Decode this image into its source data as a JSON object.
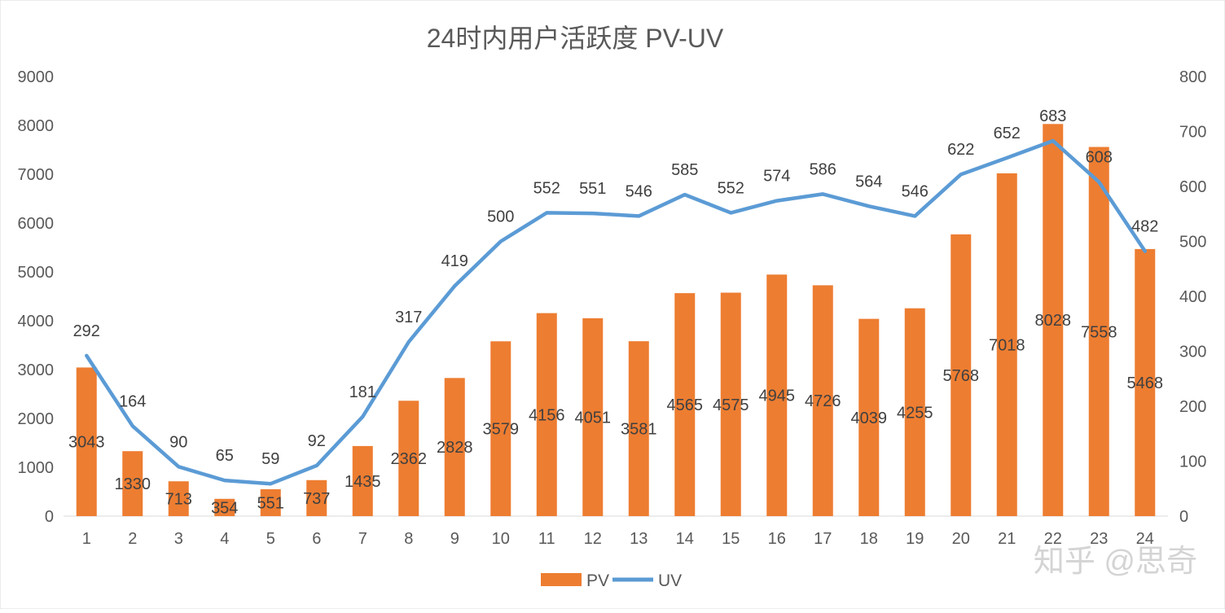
{
  "watermark": "知乎 @思奇",
  "chart_data": {
    "type": "bar",
    "title": "24时内用户活跃度 PV-UV",
    "categories": [
      "1",
      "2",
      "3",
      "4",
      "5",
      "6",
      "7",
      "8",
      "9",
      "10",
      "11",
      "12",
      "13",
      "14",
      "15",
      "16",
      "17",
      "18",
      "19",
      "20",
      "21",
      "22",
      "23",
      "24"
    ],
    "series": [
      {
        "name": "PV",
        "type": "bar",
        "axis": "left",
        "color": "#ED7D31",
        "values": [
          3043,
          1330,
          713,
          354,
          551,
          737,
          1435,
          2362,
          2828,
          3579,
          4156,
          4051,
          3581,
          4565,
          4575,
          4945,
          4726,
          4039,
          4255,
          5768,
          7018,
          8028,
          7558,
          5468
        ]
      },
      {
        "name": "UV",
        "type": "line",
        "axis": "right",
        "color": "#5B9BD5",
        "values": [
          292,
          164,
          90,
          65,
          59,
          92,
          181,
          317,
          419,
          500,
          552,
          551,
          546,
          585,
          552,
          574,
          586,
          564,
          546,
          622,
          652,
          683,
          608,
          482
        ]
      }
    ],
    "y_left": {
      "min": 0,
      "max": 9000,
      "ticks": [
        0,
        1000,
        2000,
        3000,
        4000,
        5000,
        6000,
        7000,
        8000,
        9000
      ]
    },
    "y_right": {
      "min": 0,
      "max": 800,
      "ticks": [
        0,
        100,
        200,
        300,
        400,
        500,
        600,
        700,
        800
      ]
    },
    "grid": false,
    "legend": "bottom"
  }
}
